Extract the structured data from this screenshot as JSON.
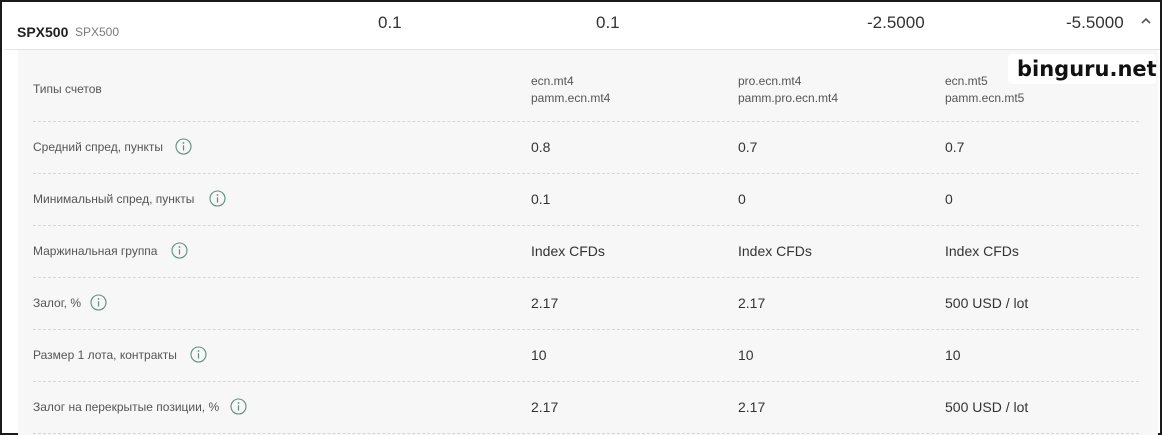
{
  "instrument": {
    "symbol": "SPX500",
    "description": "SPX500",
    "values": [
      "0.1",
      "0.1",
      "-2.5000",
      "-5.5000"
    ]
  },
  "account_types": {
    "label": "Типы счетов",
    "columns": [
      {
        "line1": "ecn.mt4",
        "line2": "pamm.ecn.mt4"
      },
      {
        "line1": "pro.ecn.mt4",
        "line2": "pamm.pro.ecn.mt4"
      },
      {
        "line1": "ecn.mt5",
        "line2": "pamm.ecn.mt5"
      }
    ]
  },
  "rows": [
    {
      "label": "Средний спред, пункты",
      "values": [
        "0.8",
        "0.7",
        "0.7"
      ]
    },
    {
      "label": "Минимальный спред, пункты",
      "values": [
        "0.1",
        "0",
        "0"
      ]
    },
    {
      "label": "Маржинальная группа",
      "values": [
        "Index CFDs",
        "Index CFDs",
        "Index CFDs"
      ]
    },
    {
      "label": "Залог, %",
      "values": [
        "2.17",
        "2.17",
        "500 USD / lot"
      ]
    },
    {
      "label": "Размер 1 лота, контракты",
      "values": [
        "10",
        "10",
        "10"
      ]
    },
    {
      "label": "Залог на перекрытые позиции, %",
      "values": [
        "2.17",
        "2.17",
        "500 USD / lot"
      ]
    }
  ],
  "watermark": "binguru.net",
  "icons": {
    "collapse": "chevron-up-icon",
    "info": "info-circle-icon"
  },
  "colors": {
    "info_icon": "#5a8f7d",
    "panel_bg": "#f7f7f7"
  }
}
